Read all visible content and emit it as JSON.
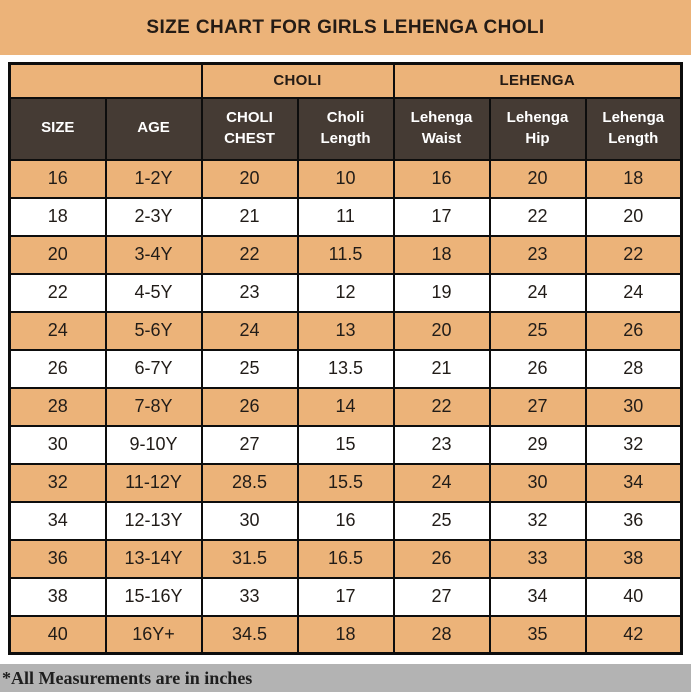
{
  "title": "SIZE CHART FOR GIRLS LEHENGA CHOLI",
  "footnote": "*All Measurements are in inches",
  "colors": {
    "tan": "#ECB379",
    "header_brown": "#453B34",
    "header_text": "#FFFFFF",
    "border": "#0D0D0D",
    "footnote_gray": "#B3B3B3"
  },
  "chart_data": {
    "type": "table",
    "title": "SIZE CHART FOR GIRLS LEHENGA CHOLI",
    "group_headers": [
      {
        "label": "",
        "span": 2
      },
      {
        "label": "CHOLI",
        "span": 2
      },
      {
        "label": "LEHENGA",
        "span": 3
      }
    ],
    "columns": [
      "SIZE",
      "AGE",
      "CHOLI CHEST",
      "Choli Length",
      "Lehenga Waist",
      "Lehenga Hip",
      "Lehenga Length"
    ],
    "rows": [
      [
        "16",
        "1-2Y",
        "20",
        "10",
        "16",
        "20",
        "18"
      ],
      [
        "18",
        "2-3Y",
        "21",
        "11",
        "17",
        "22",
        "20"
      ],
      [
        "20",
        "3-4Y",
        "22",
        "11.5",
        "18",
        "23",
        "22"
      ],
      [
        "22",
        "4-5Y",
        "23",
        "12",
        "19",
        "24",
        "24"
      ],
      [
        "24",
        "5-6Y",
        "24",
        "13",
        "20",
        "25",
        "26"
      ],
      [
        "26",
        "6-7Y",
        "25",
        "13.5",
        "21",
        "26",
        "28"
      ],
      [
        "28",
        "7-8Y",
        "26",
        "14",
        "22",
        "27",
        "30"
      ],
      [
        "30",
        "9-10Y",
        "27",
        "15",
        "23",
        "29",
        "32"
      ],
      [
        "32",
        "11-12Y",
        "28.5",
        "15.5",
        "24",
        "30",
        "34"
      ],
      [
        "34",
        "12-13Y",
        "30",
        "16",
        "25",
        "32",
        "36"
      ],
      [
        "36",
        "13-14Y",
        "31.5",
        "16.5",
        "26",
        "33",
        "38"
      ],
      [
        "38",
        "15-16Y",
        "33",
        "17",
        "27",
        "34",
        "40"
      ],
      [
        "40",
        "16Y+",
        "34.5",
        "18",
        "28",
        "35",
        "42"
      ]
    ],
    "units_note": "*All Measurements are in inches",
    "row_stripe_pattern": [
      "tan",
      "white"
    ]
  }
}
